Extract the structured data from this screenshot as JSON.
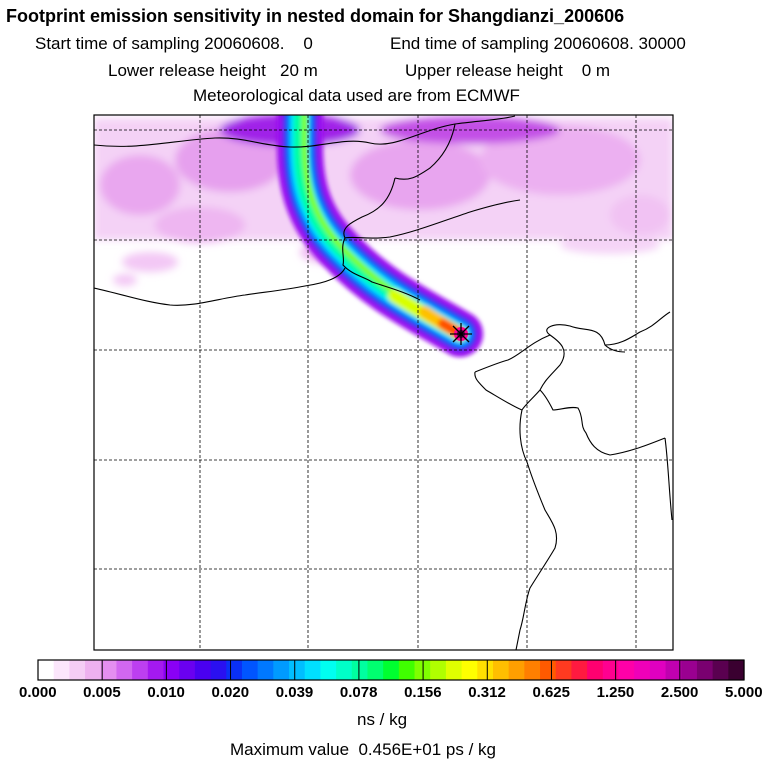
{
  "title": "Footprint emission sensitivity in nested domain for Shangdianzi_200606",
  "header": {
    "start_label": "Start time of sampling 20060608.",
    "start_value": "0",
    "end_label": "End time of sampling 20060608. 30000",
    "lower_label": "Lower release height",
    "lower_value": "20 m",
    "upper_label": "Upper release height",
    "upper_value": "0 m",
    "met_line": "Meteorological data used are from ECMWF"
  },
  "map": {
    "grid_rows": 5,
    "grid_cols": 5,
    "release_marker": "release-site-star-icon"
  },
  "legend": {
    "ticks": [
      "0.000",
      "0.005",
      "0.010",
      "0.020",
      "0.039",
      "0.078",
      "0.156",
      "0.312",
      "0.625",
      "1.250",
      "2.500",
      "5.000"
    ],
    "colors": [
      "#ffffff",
      "#fbe6fb",
      "#f5cdf5",
      "#eeb1ef",
      "#e48ef0",
      "#d267f0",
      "#bd3ff0",
      "#a419f0",
      "#8a00f5",
      "#6a00f0",
      "#4a00f0",
      "#2a10f0",
      "#0a30f5",
      "#0055ff",
      "#0078ff",
      "#009bff",
      "#00bfff",
      "#00e0ff",
      "#00fff0",
      "#00ffc8",
      "#00ffa0",
      "#00ff70",
      "#00ff30",
      "#40ff00",
      "#80ff00",
      "#b0ff00",
      "#e0ff00",
      "#ffff00",
      "#ffe000",
      "#ffbf00",
      "#ff9f00",
      "#ff7f00",
      "#ff5a00",
      "#ff3a20",
      "#ff1a40",
      "#ff0070",
      "#ff0090",
      "#ff00a8",
      "#f000b8",
      "#e000c0",
      "#c000b0",
      "#9a0090",
      "#7a0070",
      "#5a0050",
      "#3a0030"
    ],
    "units": "ns / kg"
  },
  "max_value": "Maximum value  0.456E+01 ps / kg"
}
